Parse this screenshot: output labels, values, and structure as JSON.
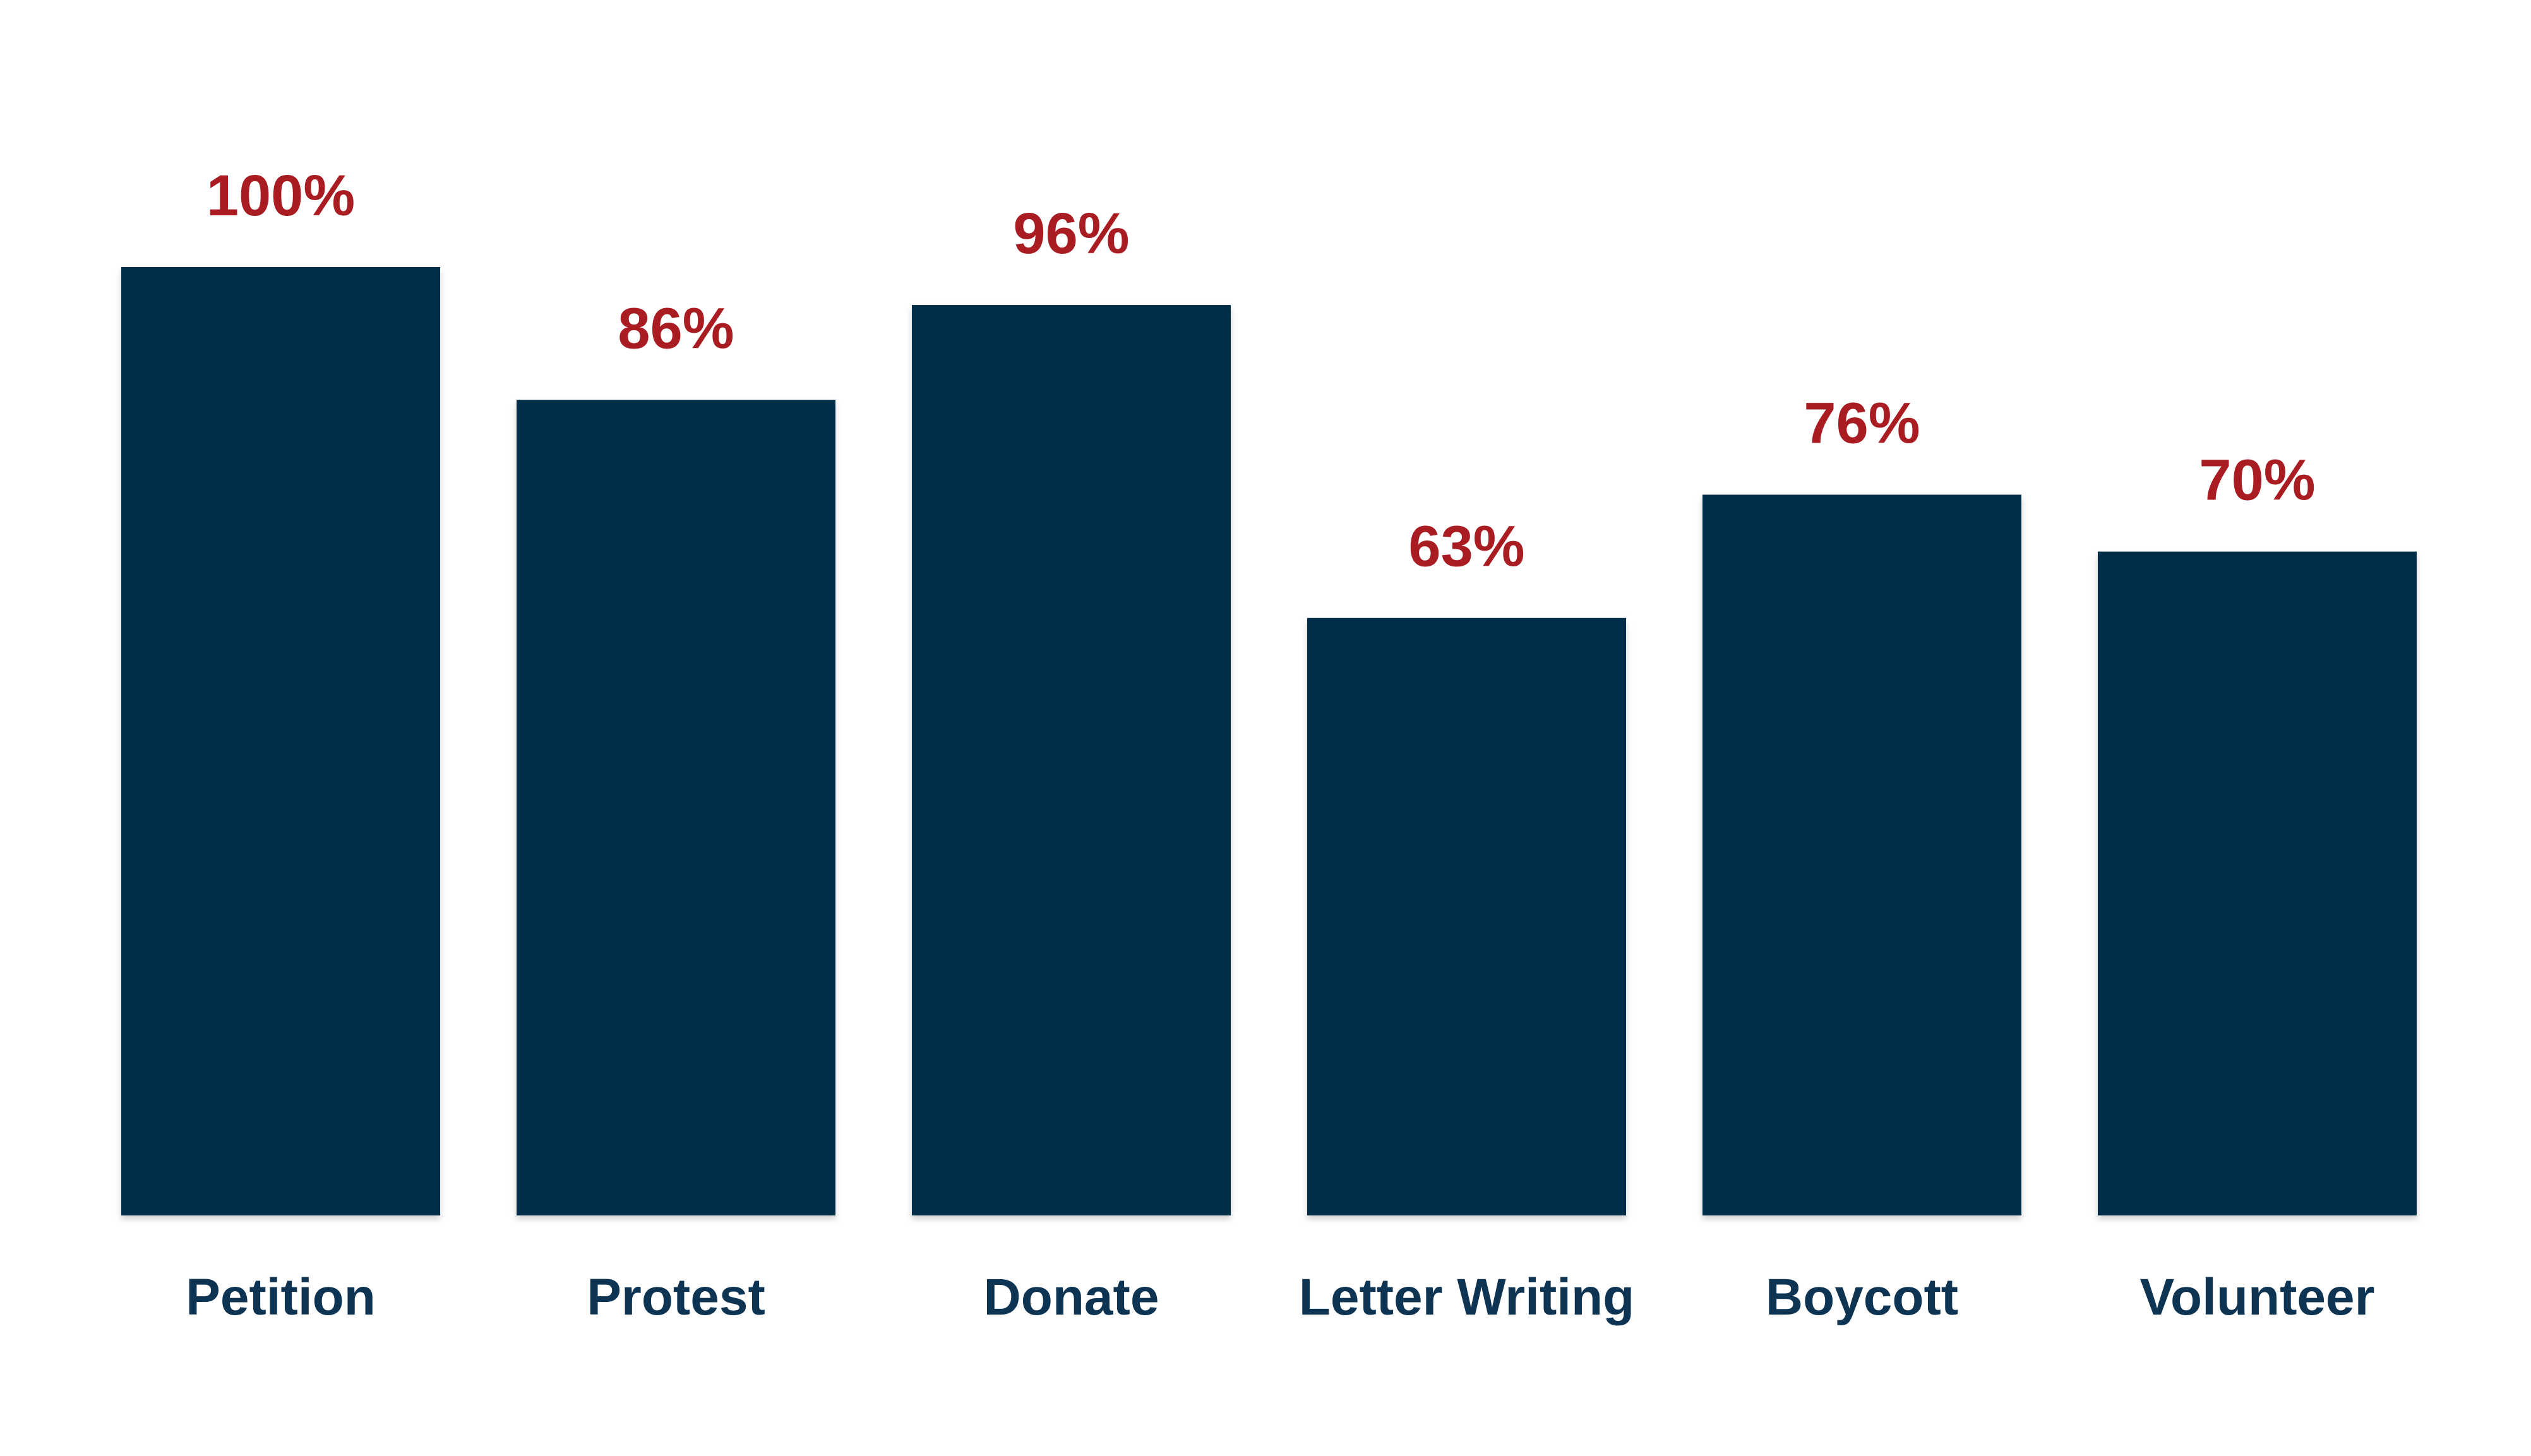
{
  "chart_data": {
    "type": "bar",
    "categories": [
      "Petition",
      "Protest",
      "Donate",
      "Letter Writing",
      "Boycott",
      "Volunteer"
    ],
    "values": [
      100,
      86,
      96,
      63,
      76,
      70
    ],
    "value_labels": [
      "100%",
      "86%",
      "96%",
      "63%",
      "76%",
      "70%"
    ],
    "title": "",
    "xlabel": "",
    "ylabel": "",
    "ylim": [
      0,
      100
    ],
    "grid": false,
    "legend": "none",
    "colors": {
      "bar": "#022f49",
      "value_label": "#a81c22",
      "category_label": "#0d3453",
      "background": "#ffffff"
    }
  }
}
